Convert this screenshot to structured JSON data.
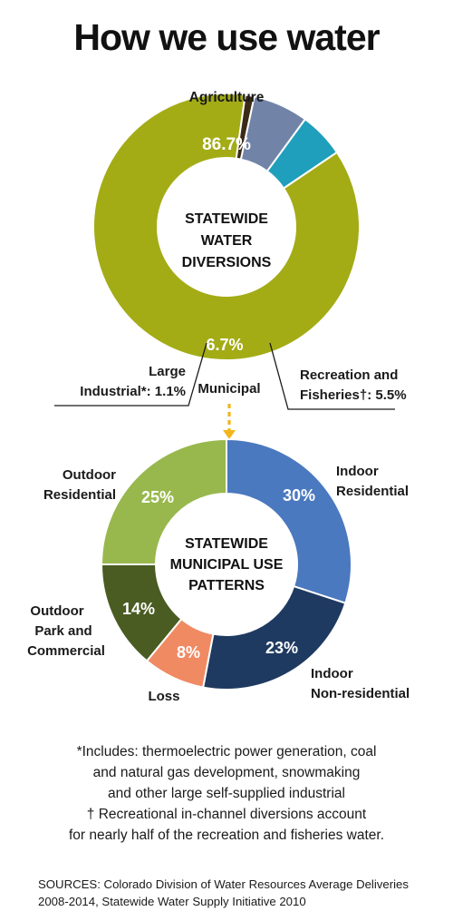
{
  "title": "How we use water",
  "chart_data": [
    {
      "type": "pie",
      "center_lines": [
        "STATEWIDE",
        "WATER",
        "DIVERSIONS"
      ],
      "slices": [
        {
          "label": "Agriculture",
          "value": 86.7,
          "value_label": "86.7%",
          "color": "#a3ac15"
        },
        {
          "label": "Large Industrial*: 1.1%",
          "value": 1.1,
          "value_label": "",
          "color": "#3b2a16"
        },
        {
          "label": "Municipal",
          "value": 6.7,
          "value_label": "6.7%",
          "color": "#7184a8"
        },
        {
          "label": "Recreation and Fisheries†: 5.5%",
          "value": 5.5,
          "value_label": "",
          "color": "#1f9fbc"
        }
      ]
    },
    {
      "type": "pie",
      "center_lines": [
        "STATEWIDE",
        "MUNICIPAL USE",
        "PATTERNS"
      ],
      "slices": [
        {
          "label": "Indoor Residential",
          "value": 30,
          "value_label": "30%",
          "color": "#4a79bf"
        },
        {
          "label": "Indoor Non-residential",
          "value": 23,
          "value_label": "23%",
          "color": "#1f3a60"
        },
        {
          "label": "Loss",
          "value": 8,
          "value_label": "8%",
          "color": "#f08a63"
        },
        {
          "label": "Outdoor Park and Commercial",
          "value": 14,
          "value_label": "14%",
          "color": "#4a5c22"
        },
        {
          "label": "Outdoor Residential",
          "value": 25,
          "value_label": "25%",
          "color": "#98b84d"
        }
      ]
    }
  ],
  "colors": {
    "connector": "#f2b51a",
    "leader": "#1a1a1a"
  },
  "footnotes": [
    "*Includes: thermoelectric power generation, coal",
    "and natural gas development, snowmaking",
    "and other large self-supplied industrial",
    "† Recreational in-channel diversions account",
    "for nearly half of the recreation and fisheries water."
  ],
  "sources": [
    "SOURCES: Colorado Division of Water Resources Average Deliveries",
    "2008-2014, Statewide Water Supply Initiative 2010"
  ]
}
